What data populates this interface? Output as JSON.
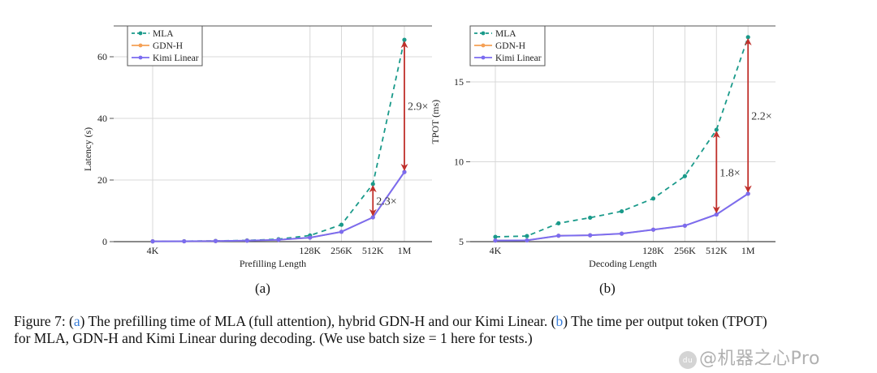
{
  "colors": {
    "mla": "#1a9a8a",
    "gdn_h": "#f5a055",
    "kimi_linear": "#7b6cf0",
    "arrow": "#c0302b",
    "grid": "#d8d8d8",
    "caption_ref": "#3b7fd9"
  },
  "chart_data": [
    {
      "type": "line",
      "panel_label": "(a)",
      "title": "",
      "xlabel": "Prefilling Length",
      "ylabel": "Latency (s)",
      "x_tick_labels": [
        "4K",
        "",
        "",
        "",
        "",
        "128K",
        "256K",
        "512K",
        "1M"
      ],
      "x_index": [
        0,
        1,
        2,
        3,
        4,
        5,
        6,
        7,
        8
      ],
      "ylim": [
        0,
        70
      ],
      "yticks": [
        0,
        20,
        40,
        60
      ],
      "grid": true,
      "legend_position": "top-left",
      "series": [
        {
          "name": "MLA",
          "style": "dashed",
          "values": [
            0.1,
            0.15,
            0.25,
            0.4,
            0.8,
            2.0,
            5.5,
            18.7,
            65.5
          ]
        },
        {
          "name": "GDN-H",
          "style": "solid",
          "values": [
            0.1,
            0.12,
            0.2,
            0.32,
            0.6,
            1.3,
            3.2,
            7.9,
            22.6
          ]
        },
        {
          "name": "Kimi Linear",
          "style": "solid",
          "values": [
            0.1,
            0.12,
            0.2,
            0.32,
            0.6,
            1.3,
            3.2,
            7.9,
            22.6
          ]
        }
      ],
      "annotations": [
        {
          "text": "2.3×",
          "x_index": 7,
          "from": 7.9,
          "to": 18.7
        },
        {
          "text": "2.9×",
          "x_index": 8,
          "from": 22.6,
          "to": 65.5
        }
      ]
    },
    {
      "type": "line",
      "panel_label": "(b)",
      "title": "",
      "xlabel": "Decoding Length",
      "ylabel": "TPOT (ms)",
      "x_tick_labels": [
        "4K",
        "",
        "",
        "",
        "",
        "128K",
        "256K",
        "512K",
        "1M"
      ],
      "x_index": [
        0,
        1,
        2,
        3,
        4,
        5,
        6,
        7,
        8
      ],
      "ylim": [
        5,
        18.5
      ],
      "yticks": [
        5,
        10,
        15
      ],
      "grid": true,
      "legend_position": "top-left",
      "series": [
        {
          "name": "MLA",
          "style": "dashed",
          "values": [
            5.3,
            5.35,
            6.15,
            6.5,
            6.9,
            7.7,
            9.1,
            12.0,
            17.8
          ]
        },
        {
          "name": "GDN-H",
          "style": "solid",
          "values": [
            5.07,
            5.08,
            5.37,
            5.4,
            5.5,
            5.75,
            6.0,
            6.7,
            8.0
          ]
        },
        {
          "name": "Kimi Linear",
          "style": "solid",
          "values": [
            5.07,
            5.08,
            5.37,
            5.4,
            5.5,
            5.75,
            6.0,
            6.7,
            8.0
          ]
        }
      ],
      "annotations": [
        {
          "text": "1.8×",
          "x_index": 7,
          "from": 6.7,
          "to": 12.0
        },
        {
          "text": "2.2×",
          "x_index": 8,
          "from": 8.0,
          "to": 17.8
        }
      ]
    }
  ],
  "caption": {
    "line1_prefix": "Figure 7: (",
    "ref_a": "a",
    "line1_mid": ") The prefilling time of MLA (full attention), hybrid GDN-H and our Kimi Linear. (",
    "ref_b": "b",
    "line1_suffix": ") The time per output token (TPOT)",
    "line2": "for MLA, GDN-H and Kimi Linear during decoding. (We use batch size = 1 here for tests.)"
  },
  "watermark": {
    "icon": "paw-icon",
    "icon_text": "du",
    "text": "@机器之心Pro"
  }
}
